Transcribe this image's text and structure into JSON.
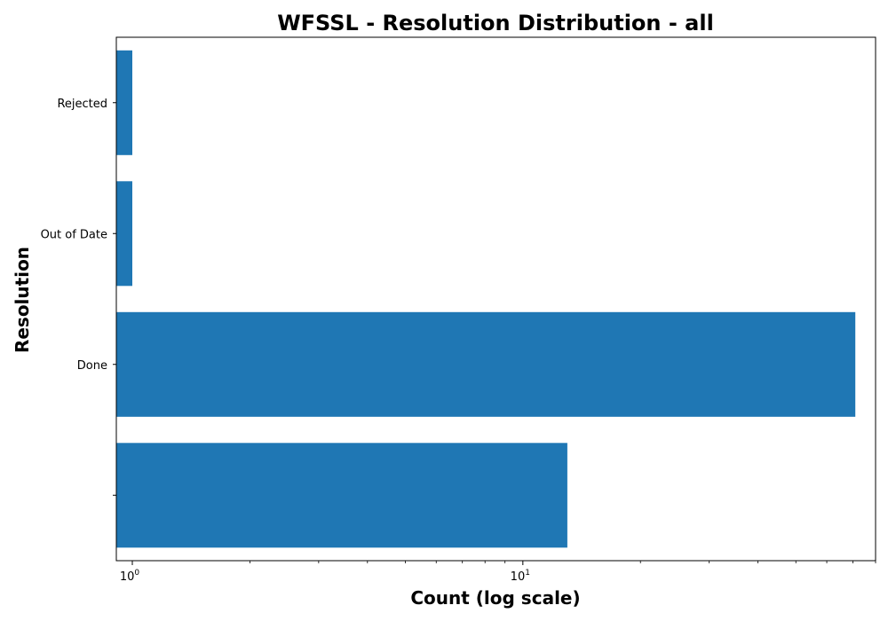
{
  "chart_data": {
    "type": "bar",
    "orientation": "horizontal",
    "title": "WFSSL - Resolution Distribution - all",
    "xlabel": "Count (log scale)",
    "ylabel": "Resolution",
    "x_scale": "log",
    "xlim": [
      0.91,
      80
    ],
    "categories": [
      "",
      "Done",
      "Out of Date",
      "Rejected"
    ],
    "values": [
      13,
      71,
      1,
      1
    ],
    "x_ticks": [
      {
        "value": 1,
        "base": "10",
        "exp": "0"
      },
      {
        "value": 10,
        "base": "10",
        "exp": "1"
      }
    ],
    "bar_color": "#1f77b4",
    "grid": false,
    "legend": "none"
  }
}
